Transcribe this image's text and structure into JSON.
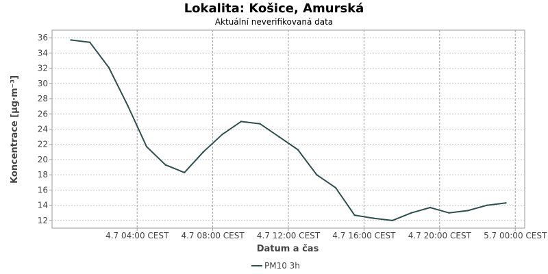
{
  "chart_data": {
    "type": "line",
    "title": "Lokalita: Košice, Amurská",
    "subtitle": "Aktuální neverifikovaná data",
    "xlabel": "Datum a čas",
    "ylabel": "Koncentrace [µg·m⁻³]",
    "grid": true,
    "legend_position": "bottom",
    "xlim_hours": [
      -0.5,
      24.5
    ],
    "ylim": [
      11,
      37
    ],
    "y_ticks": [
      12,
      14,
      16,
      18,
      20,
      22,
      24,
      26,
      28,
      30,
      32,
      34,
      36
    ],
    "x_ticks": [
      {
        "hour": 4,
        "label": "4.7 04:00 CEST"
      },
      {
        "hour": 8,
        "label": "4.7 08:00 CEST"
      },
      {
        "hour": 12,
        "label": "4.7 12:00 CEST"
      },
      {
        "hour": 16,
        "label": "4.7 16:00 CEST"
      },
      {
        "hour": 20,
        "label": "4.7 20:00 CEST"
      },
      {
        "hour": 24,
        "label": "5.7 00:00 CEST"
      }
    ],
    "series": [
      {
        "name": "PM10 3h",
        "color": "#2f4f4f",
        "x": [
          0.5,
          1.5,
          2.5,
          3.5,
          4.5,
          5.5,
          6.5,
          7.5,
          8.5,
          9.5,
          10.5,
          11.5,
          12.5,
          13.5,
          14.5,
          15.5,
          16.5,
          17.5,
          18.5,
          19.5,
          20.5,
          21.5,
          22.5,
          23.5
        ],
        "values": [
          35.7,
          35.4,
          32.1,
          27.1,
          21.7,
          19.3,
          18.3,
          21.0,
          23.3,
          25.0,
          24.7,
          23.0,
          21.3,
          18.0,
          16.3,
          12.7,
          12.3,
          12.0,
          13.0,
          13.7,
          13.0,
          13.3,
          14.0,
          14.3
        ]
      }
    ]
  }
}
